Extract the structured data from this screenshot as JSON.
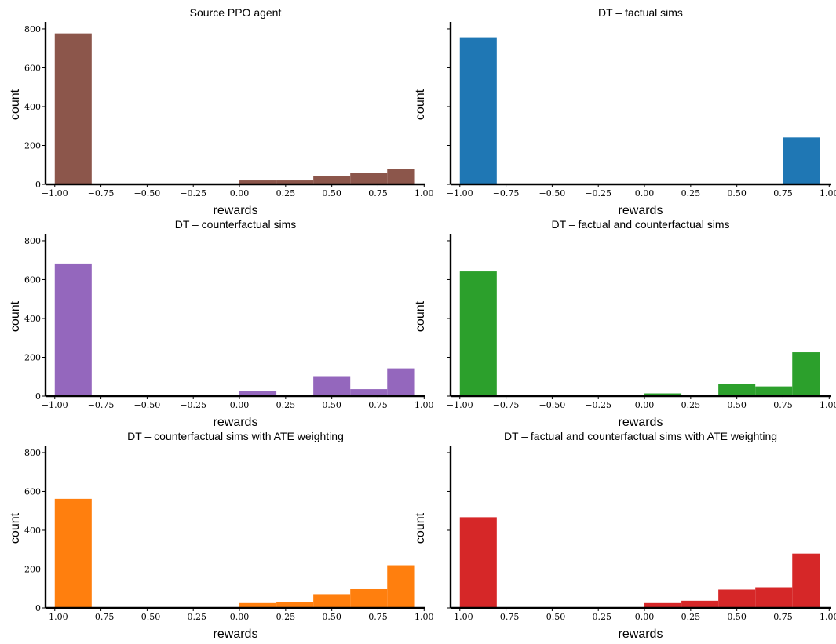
{
  "chart_data": [
    {
      "type": "bar",
      "title": "Source PPO agent",
      "xlabel": "rewards",
      "ylabel": "count",
      "color": "#8c564b",
      "xlim": [
        -1.05,
        1.02
      ],
      "ylim": [
        0,
        820
      ],
      "xticks": [
        -1.0,
        -0.75,
        -0.5,
        -0.25,
        0.0,
        0.25,
        0.5,
        0.75,
        1.0
      ],
      "xtick_labels": [
        "−1.00",
        "−0.75",
        "−0.50",
        "−0.25",
        "0.00",
        "0.25",
        "0.50",
        "0.75",
        "1.00"
      ],
      "yticks": [
        0,
        200,
        400,
        600,
        800
      ],
      "ytick_labels": [
        "0",
        "200",
        "400",
        "600",
        "800"
      ],
      "bins": [
        {
          "x0": -1.0,
          "x1": -0.8,
          "value": 777
        },
        {
          "x0": 0.0,
          "x1": 0.2,
          "value": 20
        },
        {
          "x0": 0.2,
          "x1": 0.4,
          "value": 20
        },
        {
          "x0": 0.4,
          "x1": 0.6,
          "value": 41
        },
        {
          "x0": 0.6,
          "x1": 0.8,
          "value": 57
        },
        {
          "x0": 0.8,
          "x1": 0.95,
          "value": 80
        }
      ]
    },
    {
      "type": "bar",
      "title": "DT – factual sims",
      "xlabel": "rewards",
      "ylabel": "count",
      "color": "#1f77b4",
      "xlim": [
        -1.05,
        1.02
      ],
      "ylim": [
        0,
        820
      ],
      "xticks": [
        -1.0,
        -0.75,
        -0.5,
        -0.25,
        0.0,
        0.25,
        0.5,
        0.75,
        1.0
      ],
      "xtick_labels": [
        "−1.00",
        "−0.75",
        "−0.50",
        "−0.25",
        "0.00",
        "0.25",
        "0.50",
        "0.75",
        "1.00"
      ],
      "yticks": [
        0,
        200,
        400,
        600,
        800
      ],
      "ytick_labels": [],
      "bins": [
        {
          "x0": -1.0,
          "x1": -0.8,
          "value": 757
        },
        {
          "x0": 0.75,
          "x1": 0.95,
          "value": 241
        }
      ]
    },
    {
      "type": "bar",
      "title": "DT – counterfactual sims",
      "xlabel": "rewards",
      "ylabel": "count",
      "color": "#9467bd",
      "xlim": [
        -1.05,
        1.02
      ],
      "ylim": [
        0,
        820
      ],
      "xticks": [
        -1.0,
        -0.75,
        -0.5,
        -0.25,
        0.0,
        0.25,
        0.5,
        0.75,
        1.0
      ],
      "xtick_labels": [
        "−1.00",
        "−0.75",
        "−0.50",
        "−0.25",
        "0.00",
        "0.25",
        "0.50",
        "0.75",
        "1.00"
      ],
      "yticks": [
        0,
        200,
        400,
        600,
        800
      ],
      "ytick_labels": [
        "0",
        "200",
        "400",
        "600",
        "800"
      ],
      "bins": [
        {
          "x0": -1.0,
          "x1": -0.8,
          "value": 683
        },
        {
          "x0": 0.0,
          "x1": 0.2,
          "value": 27
        },
        {
          "x0": 0.2,
          "x1": 0.4,
          "value": 8
        },
        {
          "x0": 0.4,
          "x1": 0.6,
          "value": 103
        },
        {
          "x0": 0.6,
          "x1": 0.8,
          "value": 36
        },
        {
          "x0": 0.8,
          "x1": 0.95,
          "value": 143
        }
      ]
    },
    {
      "type": "bar",
      "title": "DT – factual and counterfactual sims",
      "xlabel": "rewards",
      "ylabel": "count",
      "color": "#2ca02c",
      "xlim": [
        -1.05,
        1.02
      ],
      "ylim": [
        0,
        820
      ],
      "xticks": [
        -1.0,
        -0.75,
        -0.5,
        -0.25,
        0.0,
        0.25,
        0.5,
        0.75,
        1.0
      ],
      "xtick_labels": [
        "−1.00",
        "−0.75",
        "−0.50",
        "−0.25",
        "0.00",
        "0.25",
        "0.50",
        "0.75",
        "1.00"
      ],
      "yticks": [
        0,
        200,
        400,
        600,
        800
      ],
      "ytick_labels": [],
      "bins": [
        {
          "x0": -1.0,
          "x1": -0.8,
          "value": 642
        },
        {
          "x0": 0.0,
          "x1": 0.2,
          "value": 14
        },
        {
          "x0": 0.2,
          "x1": 0.4,
          "value": 8
        },
        {
          "x0": 0.4,
          "x1": 0.6,
          "value": 63
        },
        {
          "x0": 0.6,
          "x1": 0.8,
          "value": 50
        },
        {
          "x0": 0.8,
          "x1": 0.95,
          "value": 226
        }
      ]
    },
    {
      "type": "bar",
      "title": "DT – counterfactual sims with ATE weighting",
      "xlabel": "rewards",
      "ylabel": "count",
      "color": "#ff7f0e",
      "xlim": [
        -1.05,
        1.02
      ],
      "ylim": [
        0,
        820
      ],
      "xticks": [
        -1.0,
        -0.75,
        -0.5,
        -0.25,
        0.0,
        0.25,
        0.5,
        0.75,
        1.0
      ],
      "xtick_labels": [
        "−1.00",
        "−0.75",
        "−0.50",
        "−0.25",
        "0.00",
        "0.25",
        "0.50",
        "0.75",
        "1.00"
      ],
      "yticks": [
        0,
        200,
        400,
        600,
        800
      ],
      "ytick_labels": [
        "0",
        "200",
        "400",
        "600",
        "800"
      ],
      "bins": [
        {
          "x0": -1.0,
          "x1": -0.8,
          "value": 562
        },
        {
          "x0": 0.0,
          "x1": 0.2,
          "value": 25
        },
        {
          "x0": 0.2,
          "x1": 0.4,
          "value": 30
        },
        {
          "x0": 0.4,
          "x1": 0.6,
          "value": 71
        },
        {
          "x0": 0.6,
          "x1": 0.8,
          "value": 97
        },
        {
          "x0": 0.8,
          "x1": 0.95,
          "value": 220
        }
      ]
    },
    {
      "type": "bar",
      "title": "DT – factual and counterfactual sims with ATE weighting",
      "xlabel": "rewards",
      "ylabel": "count",
      "color": "#d62728",
      "xlim": [
        -1.05,
        1.02
      ],
      "ylim": [
        0,
        820
      ],
      "xticks": [
        -1.0,
        -0.75,
        -0.5,
        -0.25,
        0.0,
        0.25,
        0.5,
        0.75,
        1.0
      ],
      "xtick_labels": [
        "−1.00",
        "−0.75",
        "−0.50",
        "−0.25",
        "0.00",
        "0.25",
        "0.50",
        "0.75",
        "1.00"
      ],
      "yticks": [
        0,
        200,
        400,
        600,
        800
      ],
      "ytick_labels": [],
      "bins": [
        {
          "x0": -1.0,
          "x1": -0.8,
          "value": 467
        },
        {
          "x0": 0.0,
          "x1": 0.2,
          "value": 25
        },
        {
          "x0": 0.2,
          "x1": 0.4,
          "value": 37
        },
        {
          "x0": 0.4,
          "x1": 0.6,
          "value": 95
        },
        {
          "x0": 0.6,
          "x1": 0.8,
          "value": 107
        },
        {
          "x0": 0.8,
          "x1": 0.95,
          "value": 280
        }
      ]
    }
  ]
}
